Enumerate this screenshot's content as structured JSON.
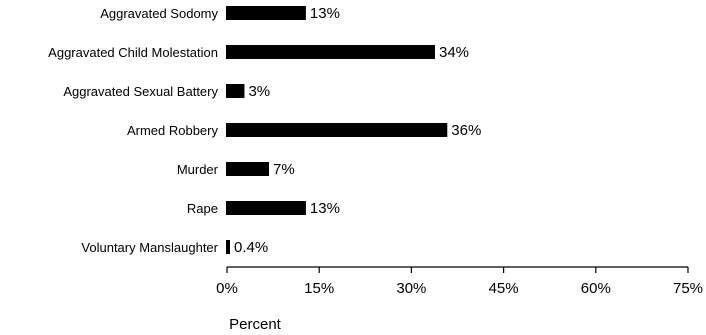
{
  "chart_data": {
    "type": "bar",
    "orientation": "horizontal",
    "categories": [
      "Aggravated Sodomy",
      "Aggravated Child Molestation",
      "Aggravated Sexual Battery",
      "Armed Robbery",
      "Murder",
      "Rape",
      "Voluntary Manslaughter"
    ],
    "values": [
      13,
      34,
      3,
      36,
      7,
      13,
      0.4
    ],
    "value_labels": [
      "13%",
      "34%",
      "3%",
      "36%",
      "7%",
      "13%",
      "0.4%"
    ],
    "xlabel": "Percent",
    "ylabel": "",
    "xlim": [
      0,
      75
    ],
    "xticks": [
      0,
      15,
      30,
      45,
      60,
      75
    ],
    "xtick_labels": [
      "0%",
      "15%",
      "30%",
      "45%",
      "60%",
      "75%"
    ],
    "grid": false,
    "bar_color": "#000000"
  }
}
